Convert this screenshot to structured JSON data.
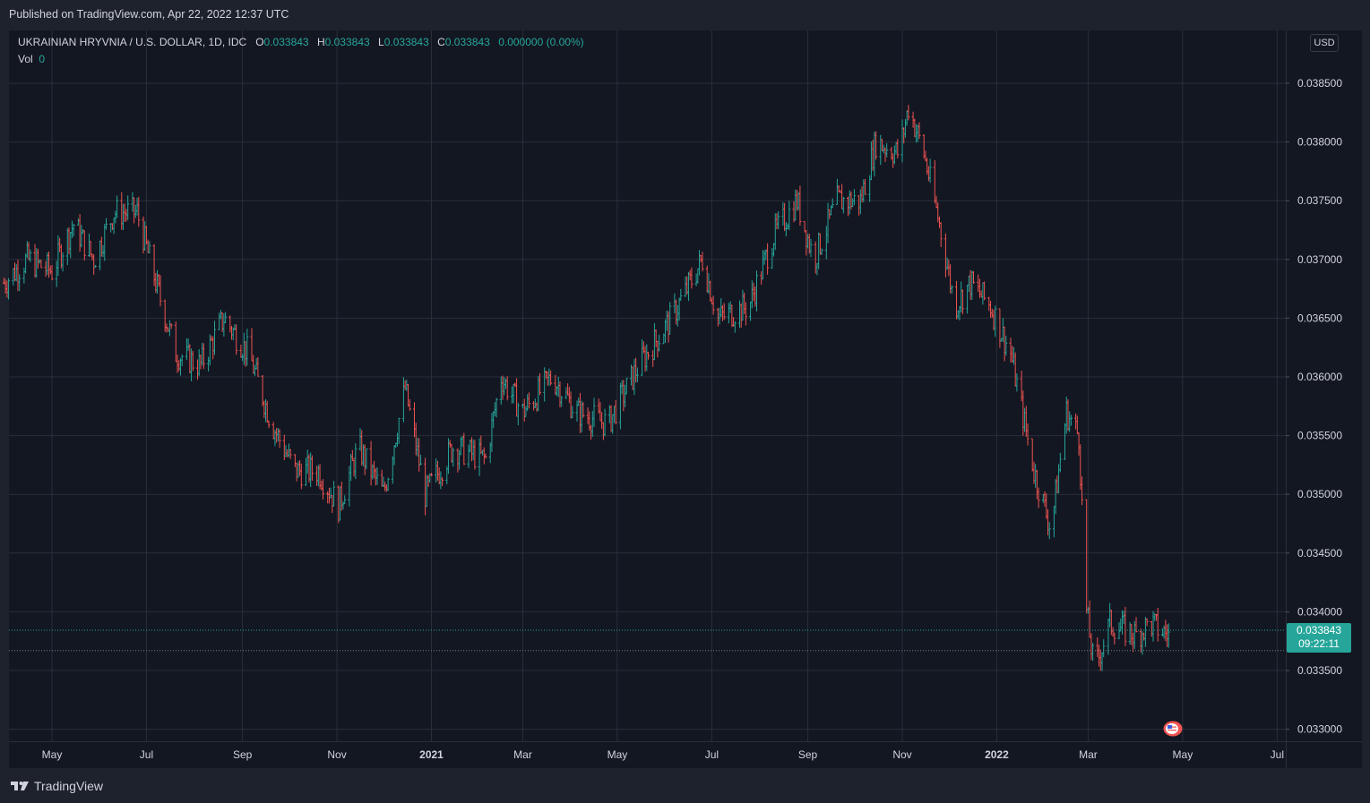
{
  "header": {
    "published": "Published on TradingView.com, Apr 22, 2022 12:37 UTC"
  },
  "legend": {
    "symbol": "UKRAINIAN HRYVNIA / U.S. DOLLAR, 1D, IDC",
    "o_label": "O",
    "o_value": "0.033843",
    "h_label": "H",
    "h_value": "0.033843",
    "l_label": "L",
    "l_value": "0.033843",
    "c_label": "C",
    "c_value": "0.033843",
    "change": "0.000000 (0.00%)",
    "vol_label": "Vol",
    "vol_value": "0"
  },
  "currency_button": "USD",
  "last_price": {
    "value": "0.033843",
    "countdown": "09:22:11"
  },
  "footer": {
    "brand": "TradingView"
  },
  "colors": {
    "up": "#26a69a",
    "down": "#ef5350",
    "grid": "#2a2e39",
    "background": "#131722"
  },
  "chart_data": {
    "type": "ohlc",
    "title": "UKRAINIAN HRYVNIA / U.S. DOLLAR, 1D, IDC",
    "ylim": [
      0.0328,
      0.0388
    ],
    "y_ticks": [
      "0.038500",
      "0.038000",
      "0.037500",
      "0.037000",
      "0.036500",
      "0.036000",
      "0.035500",
      "0.035000",
      "0.034500",
      "0.034000",
      "0.033500",
      "0.033000"
    ],
    "x_ticks": [
      {
        "label": "May",
        "date": "2020-05-01",
        "bold": false
      },
      {
        "label": "Jul",
        "date": "2020-07-01",
        "bold": false
      },
      {
        "label": "Sep",
        "date": "2020-09-01",
        "bold": false
      },
      {
        "label": "Nov",
        "date": "2020-11-01",
        "bold": false
      },
      {
        "label": "2021",
        "date": "2021-01-01",
        "bold": true
      },
      {
        "label": "Mar",
        "date": "2021-03-01",
        "bold": false
      },
      {
        "label": "May",
        "date": "2021-05-01",
        "bold": false
      },
      {
        "label": "Jul",
        "date": "2021-07-01",
        "bold": false
      },
      {
        "label": "Sep",
        "date": "2021-09-01",
        "bold": false
      },
      {
        "label": "Nov",
        "date": "2021-11-01",
        "bold": false
      },
      {
        "label": "2022",
        "date": "2022-01-01",
        "bold": true
      },
      {
        "label": "Mar",
        "date": "2022-03-01",
        "bold": false
      },
      {
        "label": "May",
        "date": "2022-05-01",
        "bold": false
      },
      {
        "label": "Jul",
        "date": "2022-07-01",
        "bold": false
      }
    ],
    "price_path": [
      {
        "date": "2020-03-31",
        "value": 0.0368
      },
      {
        "date": "2020-04-15",
        "value": 0.037
      },
      {
        "date": "2020-05-01",
        "value": 0.0369
      },
      {
        "date": "2020-05-15",
        "value": 0.0373
      },
      {
        "date": "2020-05-28",
        "value": 0.037
      },
      {
        "date": "2020-06-10",
        "value": 0.0374
      },
      {
        "date": "2020-06-25",
        "value": 0.0374
      },
      {
        "date": "2020-07-05",
        "value": 0.0369
      },
      {
        "date": "2020-07-20",
        "value": 0.0362
      },
      {
        "date": "2020-08-05",
        "value": 0.0361
      },
      {
        "date": "2020-08-20",
        "value": 0.0365
      },
      {
        "date": "2020-09-05",
        "value": 0.0362
      },
      {
        "date": "2020-09-20",
        "value": 0.0356
      },
      {
        "date": "2020-10-05",
        "value": 0.0352
      },
      {
        "date": "2020-10-20",
        "value": 0.0352
      },
      {
        "date": "2020-11-02",
        "value": 0.0349
      },
      {
        "date": "2020-11-15",
        "value": 0.0354
      },
      {
        "date": "2020-12-01",
        "value": 0.035
      },
      {
        "date": "2020-12-15",
        "value": 0.0359
      },
      {
        "date": "2020-12-28",
        "value": 0.035
      },
      {
        "date": "2021-01-15",
        "value": 0.0354
      },
      {
        "date": "2021-02-05",
        "value": 0.0353
      },
      {
        "date": "2021-02-15",
        "value": 0.036
      },
      {
        "date": "2021-03-01",
        "value": 0.0357
      },
      {
        "date": "2021-03-20",
        "value": 0.036
      },
      {
        "date": "2021-04-05",
        "value": 0.0357
      },
      {
        "date": "2021-04-25",
        "value": 0.0356
      },
      {
        "date": "2021-05-15",
        "value": 0.0361
      },
      {
        "date": "2021-06-05",
        "value": 0.0365
      },
      {
        "date": "2021-06-25",
        "value": 0.037
      },
      {
        "date": "2021-07-05",
        "value": 0.0365
      },
      {
        "date": "2021-07-25",
        "value": 0.0366
      },
      {
        "date": "2021-08-10",
        "value": 0.0372
      },
      {
        "date": "2021-08-25",
        "value": 0.0375
      },
      {
        "date": "2021-09-05",
        "value": 0.037
      },
      {
        "date": "2021-09-20",
        "value": 0.0375
      },
      {
        "date": "2021-10-05",
        "value": 0.0375
      },
      {
        "date": "2021-10-15",
        "value": 0.038
      },
      {
        "date": "2021-10-30",
        "value": 0.0379
      },
      {
        "date": "2021-11-05",
        "value": 0.0383
      },
      {
        "date": "2021-11-15",
        "value": 0.0379
      },
      {
        "date": "2021-11-25",
        "value": 0.0373
      },
      {
        "date": "2021-12-05",
        "value": 0.0366
      },
      {
        "date": "2021-12-15",
        "value": 0.0368
      },
      {
        "date": "2021-12-28",
        "value": 0.0366
      },
      {
        "date": "2022-01-10",
        "value": 0.0362
      },
      {
        "date": "2022-01-25",
        "value": 0.0352
      },
      {
        "date": "2022-02-05",
        "value": 0.0347
      },
      {
        "date": "2022-02-15",
        "value": 0.0357
      },
      {
        "date": "2022-02-23",
        "value": 0.0355
      },
      {
        "date": "2022-02-28",
        "value": 0.034
      },
      {
        "date": "2022-03-05",
        "value": 0.0335
      },
      {
        "date": "2022-03-15",
        "value": 0.0339
      },
      {
        "date": "2022-04-01",
        "value": 0.0338
      },
      {
        "date": "2022-04-10",
        "value": 0.0339
      },
      {
        "date": "2022-04-22",
        "value": 0.0338
      }
    ],
    "last_close": 0.033843,
    "prev_level": 0.03367
  }
}
